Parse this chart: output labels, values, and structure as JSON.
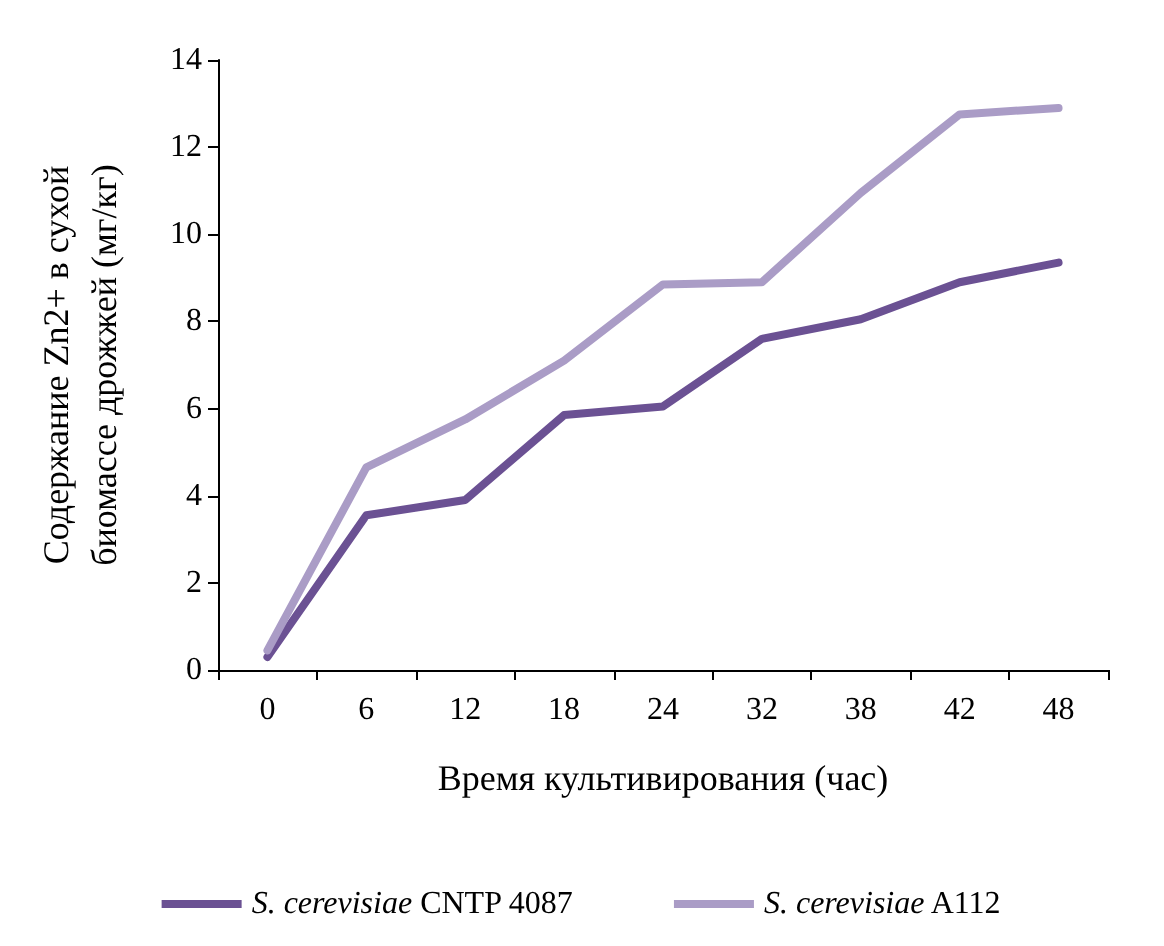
{
  "chart_data": {
    "type": "line",
    "xlabel": "Время культивирования (час)",
    "ylabel": "Содержание Zn2+ в сухой\nбиомассе дрожжей (мг/кг)",
    "categories": [
      "0",
      "6",
      "12",
      "18",
      "24",
      "32",
      "38",
      "42",
      "48"
    ],
    "series": [
      {
        "name": "S. cerevisiae CNTP 4087",
        "color": "#6b5193",
        "values": [
          0.3,
          3.55,
          3.9,
          5.85,
          6.05,
          7.6,
          8.05,
          8.9,
          9.35
        ]
      },
      {
        "name": "S. cerevisiae A112",
        "color": "#aa9cc6",
        "values": [
          0.45,
          4.65,
          5.75,
          7.1,
          8.85,
          8.9,
          10.95,
          12.75,
          12.9
        ]
      }
    ],
    "ylim": [
      0,
      14
    ],
    "yticks": [
      0,
      2,
      4,
      6,
      8,
      10,
      12,
      14
    ],
    "grid": false,
    "legend": "bottom",
    "marker": "none",
    "line_style": "solid"
  }
}
